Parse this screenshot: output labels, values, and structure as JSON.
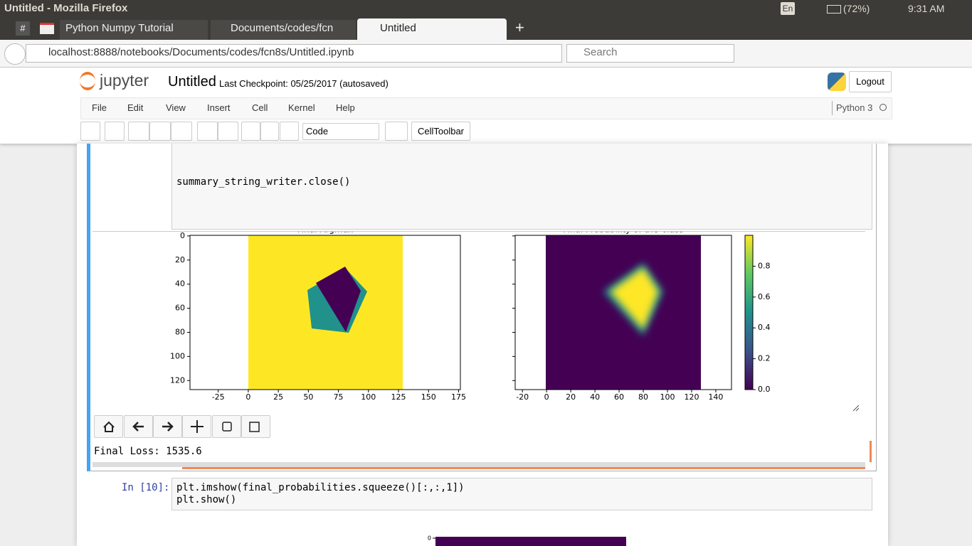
{
  "system_bar": {
    "title": "Untitled - Mozilla Firefox",
    "keyboard": "En",
    "battery": "(72%)",
    "time": "9:31 AM"
  },
  "tabs": [
    "Python Numpy Tutorial",
    "Documents/codes/fcn",
    "Untitled"
  ],
  "address_bar": {
    "url": "localhost:8888/notebooks/Documents/codes/fcn8s/Untitled.ipynb",
    "search": "Search"
  },
  "jupyter": {
    "logo": "jupyter",
    "notebook_name": "Untitled",
    "checkpoint": "Last Checkpoint: 05/25/2017 (autosaved)",
    "logout": "Logout",
    "menu": [
      "File",
      "Edit",
      "View",
      "Insert",
      "Cell",
      "Kernel",
      "Help"
    ],
    "kernel": "Python 3",
    "cell_type": "Code",
    "cell_toolbar": "CellToolbar"
  },
  "cell_1": {
    "code": [
      "summary_string_writer.close()"
    ]
  },
  "output": {
    "plots": [
      {
        "type": "image",
        "title": "Final Argmax",
        "xlim": [
          -48.5,
          176.5
        ],
        "ylim": [
          127.5,
          -0.5
        ],
        "xticks": [
          -25,
          0,
          25,
          50,
          75,
          100,
          125,
          150,
          175
        ],
        "yticks": [
          0,
          20,
          40,
          60,
          80,
          100,
          120
        ]
      },
      {
        "type": "image",
        "title": "Final Probability of the Class",
        "xlim": [
          -26,
          153
        ],
        "ylim": [
          127.5,
          -0.5
        ],
        "xticks": [
          -20,
          0,
          20,
          40,
          60,
          80,
          100,
          120,
          140
        ],
        "yticks": [
          0,
          20,
          40,
          60,
          80,
          100,
          120
        ],
        "ytick_labels": false,
        "colorbar": {
          "lim": [
            0,
            1
          ],
          "ticks": [
            {
              "value": 0,
              "label": "0.0"
            },
            0.2,
            0.4,
            0.6,
            0.8
          ]
        }
      }
    ],
    "text": "Final Loss: 1535.6"
  },
  "cell_2": {
    "prompt": "In [10]:",
    "code": [
      "plt.imshow(final_probabilities.squeeze()[:,:,1])",
      "plt.show()"
    ]
  },
  "partial_plot": {
    "yticks": [
      0
    ]
  }
}
